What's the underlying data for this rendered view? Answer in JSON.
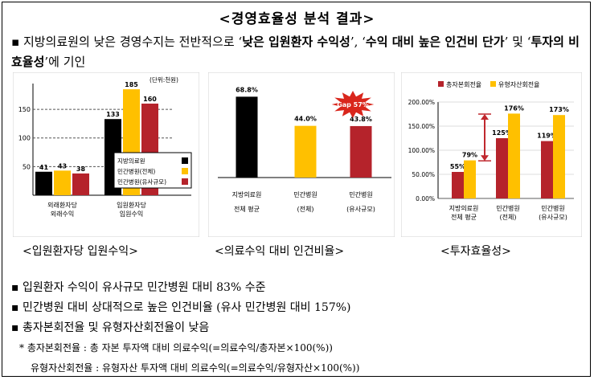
{
  "title": "<경영효율성 분석 결과>",
  "intro": {
    "bullet": "▪",
    "p1": " 지방의료원의 낮은 경영수지는 전반적으로 ‘",
    "b1": "낮은 입원환자 수익성",
    "p2": "’, ‘",
    "b2": "수익 대비 높은 인건비 단가",
    "p3": "’ 및 ‘",
    "b3": "투자의 비효율성",
    "p4": "’에 기인"
  },
  "captions": [
    "<입원환자당 입원수익>",
    "<의료수익 대비 인건비율>",
    "<투자효율성>"
  ],
  "bullets": [
    "▪ 입원환자 수익이 유사규모 민간병원 대비 83% 수준",
    "▪ 민간병원 대비 상대적으로 높은 인건비율 (유사 민간병원 대비 157%)",
    "▪ 총자본회전율 및 유형자산회전율이 낮음"
  ],
  "notes": [
    "* 총자본회전율 : 총 자본 투자액 대비 의료수익(=의료수익/총자본×100(%))",
    "유형자산회전율 : 유형자산 투자액 대비 의료수익(=의료수익/유형자산×100(%))"
  ],
  "colors": {
    "black": "#000000",
    "yellow": "#FFC000",
    "red": "#B5232B",
    "gap_badge": "#D9261C"
  },
  "chart_data": [
    {
      "type": "bar",
      "unit_label": "(단위:천원)",
      "categories": [
        [
          "외래환자당",
          "외래수익"
        ],
        [
          "입원환자당",
          "입원수익"
        ]
      ],
      "series": [
        {
          "name": "지방의료원",
          "values": [
            41,
            133
          ]
        },
        {
          "name": "민간병원(전체)",
          "values": [
            43,
            185
          ]
        },
        {
          "name": "민간병원(유사규모)",
          "values": [
            38,
            160
          ]
        }
      ],
      "yticks": [
        "50",
        "100",
        "150"
      ],
      "ylim": [
        0,
        195
      ],
      "legend": "center-right"
    },
    {
      "type": "bar",
      "categories": [
        [
          "지방의료원",
          "전체 평균"
        ],
        [
          "민간병원",
          "(전체)"
        ],
        [
          "민간병원",
          "(유사규모)"
        ]
      ],
      "values": [
        68.8,
        44.0,
        43.8
      ],
      "value_labels": [
        "68.8%",
        "44.0%",
        "43.8%"
      ],
      "annotation": "Gap 57%",
      "ylim": [
        0,
        80
      ]
    },
    {
      "type": "bar",
      "categories": [
        [
          "지방의료원",
          "전체 평균"
        ],
        [
          "민간병원",
          "(전체)"
        ],
        [
          "민간병원",
          "(유사규모)"
        ]
      ],
      "series": [
        {
          "name": "총자본회전율",
          "values": [
            55,
            125,
            119
          ]
        },
        {
          "name": "유형자산회전율",
          "values": [
            79,
            176,
            173
          ]
        }
      ],
      "yticks": [
        "0.00%",
        "50.00%",
        "100.00%",
        "150.00%",
        "200.00%"
      ],
      "ylim": [
        0,
        200
      ],
      "legend": "top"
    }
  ]
}
